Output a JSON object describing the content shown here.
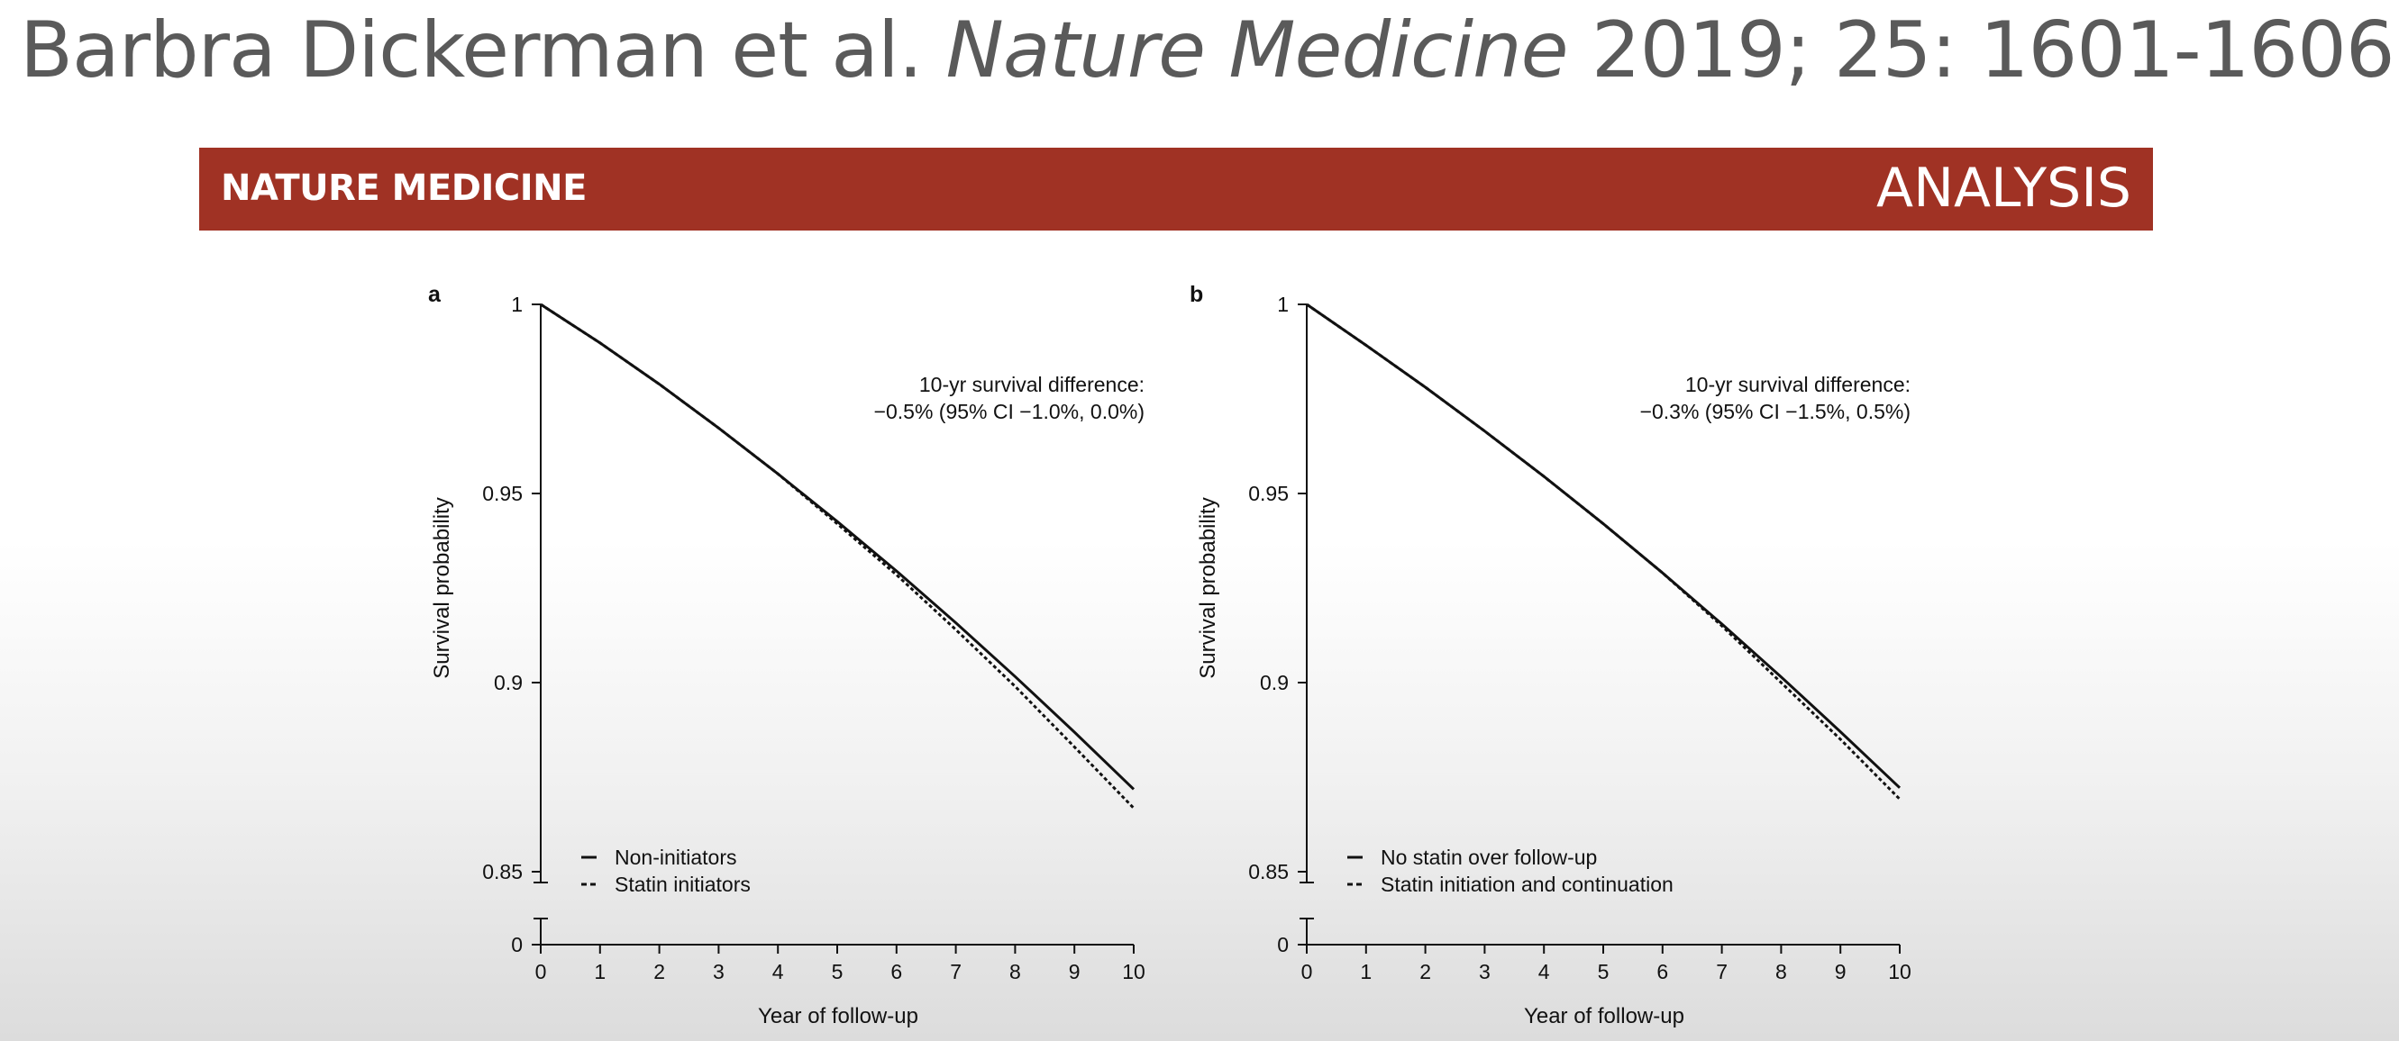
{
  "slide": {
    "title_plain": "Barbra Dickerman et al. ",
    "title_italic": "Nature Medicine",
    "title_tail": " 2019; 25: 1601-1606"
  },
  "banner": {
    "journal": "NATURE MEDICINE",
    "article_type": "ANALYSIS",
    "color": "#a03224"
  },
  "chart_data": [
    {
      "type": "line",
      "panel": "a",
      "xlabel": "Year of follow-up",
      "ylabel": "Survival probability",
      "xlim": [
        0,
        10
      ],
      "ylim": [
        0.85,
        1
      ],
      "axis_break": true,
      "x_ticks": [
        0,
        1,
        2,
        3,
        4,
        5,
        6,
        7,
        8,
        9,
        10
      ],
      "y_ticks": [
        0.85,
        0.9,
        0.95,
        1
      ],
      "y_tick_labels": [
        "0.85",
        "0.9",
        "0.95",
        "1"
      ],
      "y_zero_label": "0",
      "annotation": [
        "10-yr survival difference:",
        "−0.5% (95% CI −1.0%, 0.0%)"
      ],
      "legend_position": "bottom-left",
      "x": [
        0,
        1,
        2,
        3,
        4,
        5,
        6,
        7,
        8,
        9,
        10
      ],
      "series": [
        {
          "name": "Non-initiators",
          "style": "solid",
          "values": [
            1.0,
            0.9898,
            0.9789,
            0.9673,
            0.9552,
            0.9426,
            0.9295,
            0.9158,
            0.9016,
            0.8869,
            0.8718
          ]
        },
        {
          "name": "Statin initiators",
          "style": "dashed",
          "values": [
            1.0,
            0.9898,
            0.9789,
            0.9673,
            0.9552,
            0.942,
            0.9285,
            0.914,
            0.899,
            0.883,
            0.8668
          ]
        }
      ]
    },
    {
      "type": "line",
      "panel": "b",
      "xlabel": "Year of follow-up",
      "ylabel": "Survival probability",
      "xlim": [
        0,
        10
      ],
      "ylim": [
        0.85,
        1
      ],
      "axis_break": true,
      "x_ticks": [
        0,
        1,
        2,
        3,
        4,
        5,
        6,
        7,
        8,
        9,
        10
      ],
      "y_ticks": [
        0.85,
        0.9,
        0.95,
        1
      ],
      "y_tick_labels": [
        "0.85",
        "0.9",
        "0.95",
        "1"
      ],
      "y_zero_label": "0",
      "annotation": [
        "10-yr survival difference:",
        "−0.3% (95% CI −1.5%, 0.5%)"
      ],
      "legend_position": "bottom-left",
      "x": [
        0,
        1,
        2,
        3,
        4,
        5,
        6,
        7,
        8,
        9,
        10
      ],
      "series": [
        {
          "name": "No statin over follow-up",
          "style": "solid",
          "values": [
            1.0,
            0.9892,
            0.9781,
            0.9665,
            0.9545,
            0.942,
            0.929,
            0.9155,
            0.9015,
            0.887,
            0.8722
          ]
        },
        {
          "name": "Statin initiation and continuation",
          "style": "dashed",
          "values": [
            1.0,
            0.9892,
            0.9781,
            0.9665,
            0.9545,
            0.942,
            0.929,
            0.915,
            0.9,
            0.885,
            0.8692
          ]
        }
      ]
    }
  ]
}
